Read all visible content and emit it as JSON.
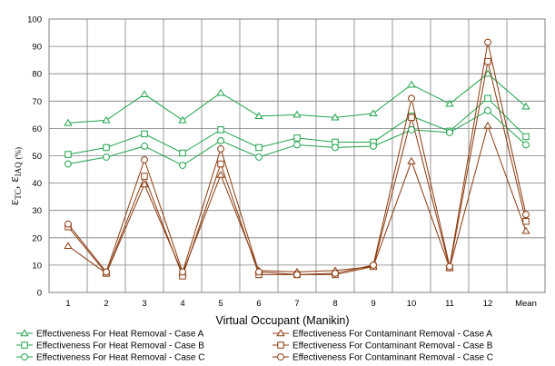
{
  "chart_data": {
    "type": "line",
    "categories": [
      "1",
      "2",
      "3",
      "4",
      "5",
      "6",
      "7",
      "8",
      "9",
      "10",
      "11",
      "12",
      "Mean"
    ],
    "ylim": [
      0,
      100
    ],
    "yticks": [
      0,
      10,
      20,
      30,
      40,
      50,
      60,
      70,
      80,
      90,
      100
    ],
    "grid": true,
    "xlabel": "Virtual Occupant (Manikin)",
    "ylabel": {
      "main1": "ε",
      "sub1": "TC",
      "sep": ", ",
      "main2": "ε",
      "sub2": "IAQ",
      "unit": "(%)"
    },
    "legend_position": "bottom",
    "colors": {
      "heat": "#1fa34a",
      "contaminant": "#8b3a0f"
    },
    "series": [
      {
        "name": "Effectiveness For Heat Removal - Case A",
        "group": "heat",
        "marker": "triangle",
        "values": [
          62,
          63,
          72.5,
          63,
          73,
          64.5,
          65,
          64,
          65.5,
          76,
          69,
          80,
          68
        ]
      },
      {
        "name": "Effectiveness For Contaminant Removal - Case A",
        "group": "contaminant",
        "marker": "triangle",
        "values": [
          17,
          7,
          39.5,
          7,
          43,
          8,
          7.5,
          8,
          9.5,
          48,
          9,
          61,
          22.5
        ]
      },
      {
        "name": "Effectiveness For Heat Removal - Case B",
        "group": "heat",
        "marker": "square",
        "values": [
          50.5,
          53,
          58,
          51,
          59.5,
          53,
          56.5,
          55,
          55,
          64.5,
          59,
          71,
          57
        ]
      },
      {
        "name": "Effectiveness For Contaminant Removal - Case B",
        "group": "contaminant",
        "marker": "square",
        "values": [
          24,
          7,
          42.5,
          6,
          47,
          6.5,
          6.5,
          6.5,
          9.5,
          64,
          9,
          84.5,
          26
        ]
      },
      {
        "name": "Effectiveness For Heat Removal - Case C",
        "group": "heat",
        "marker": "circle",
        "values": [
          47,
          49.5,
          53.5,
          46.5,
          55.5,
          49.5,
          54,
          53,
          53.5,
          59.5,
          58.5,
          66.5,
          54
        ]
      },
      {
        "name": "Effectiveness For Contaminant Removal - Case C",
        "group": "contaminant",
        "marker": "circle",
        "values": [
          25,
          7.5,
          48.5,
          7.5,
          52.5,
          7.5,
          6.5,
          7,
          10,
          71,
          9.5,
          91.5,
          28.5
        ]
      }
    ]
  }
}
